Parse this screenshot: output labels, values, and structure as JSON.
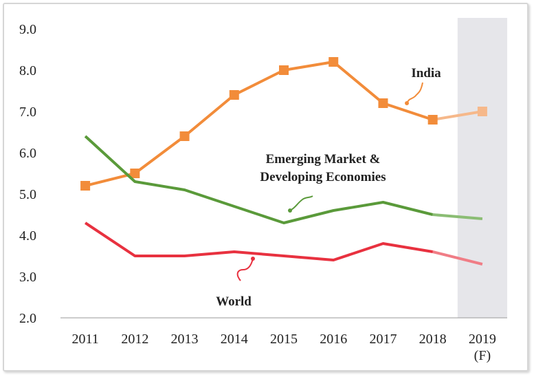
{
  "chart_data": {
    "type": "line",
    "categories": [
      "2011",
      "2012",
      "2013",
      "2014",
      "2015",
      "2016",
      "2017",
      "2018",
      "2019"
    ],
    "category_sublabels": [
      "",
      "",
      "",
      "",
      "",
      "",
      "",
      "",
      "(F)"
    ],
    "forecast_from_index": 8,
    "ylim": [
      2.0,
      9.0
    ],
    "yticks": [
      "2.0",
      "3.0",
      "4.0",
      "5.0",
      "6.0",
      "7.0",
      "8.0",
      "9.0"
    ],
    "grid": false,
    "forecast_shading_color": "#e6e6ea",
    "series": [
      {
        "name": "India",
        "color": "#f28c3a",
        "forecast_color": "#f6b88a",
        "markers": true,
        "values": [
          5.2,
          5.5,
          6.4,
          7.4,
          8.0,
          8.2,
          7.2,
          6.8,
          7.0
        ]
      },
      {
        "name": "Emerging Market & Developing Economies",
        "color": "#5a9a3a",
        "forecast_color": "#8bbd74",
        "markers": false,
        "values": [
          6.4,
          5.3,
          5.1,
          4.7,
          4.3,
          4.6,
          4.8,
          4.5,
          4.4
        ]
      },
      {
        "name": "World",
        "color": "#e8313f",
        "forecast_color": "#f07d86",
        "markers": false,
        "values": [
          4.3,
          3.5,
          3.5,
          3.6,
          3.5,
          3.4,
          3.8,
          3.6,
          3.3
        ]
      }
    ],
    "annotations": [
      {
        "lines": [
          "India"
        ],
        "color": "#f28c3a"
      },
      {
        "lines": [
          "Emerging Market &",
          "Developing Economies"
        ],
        "color": "#5a9a3a"
      },
      {
        "lines": [
          "World"
        ],
        "color": "#e8313f"
      }
    ]
  }
}
